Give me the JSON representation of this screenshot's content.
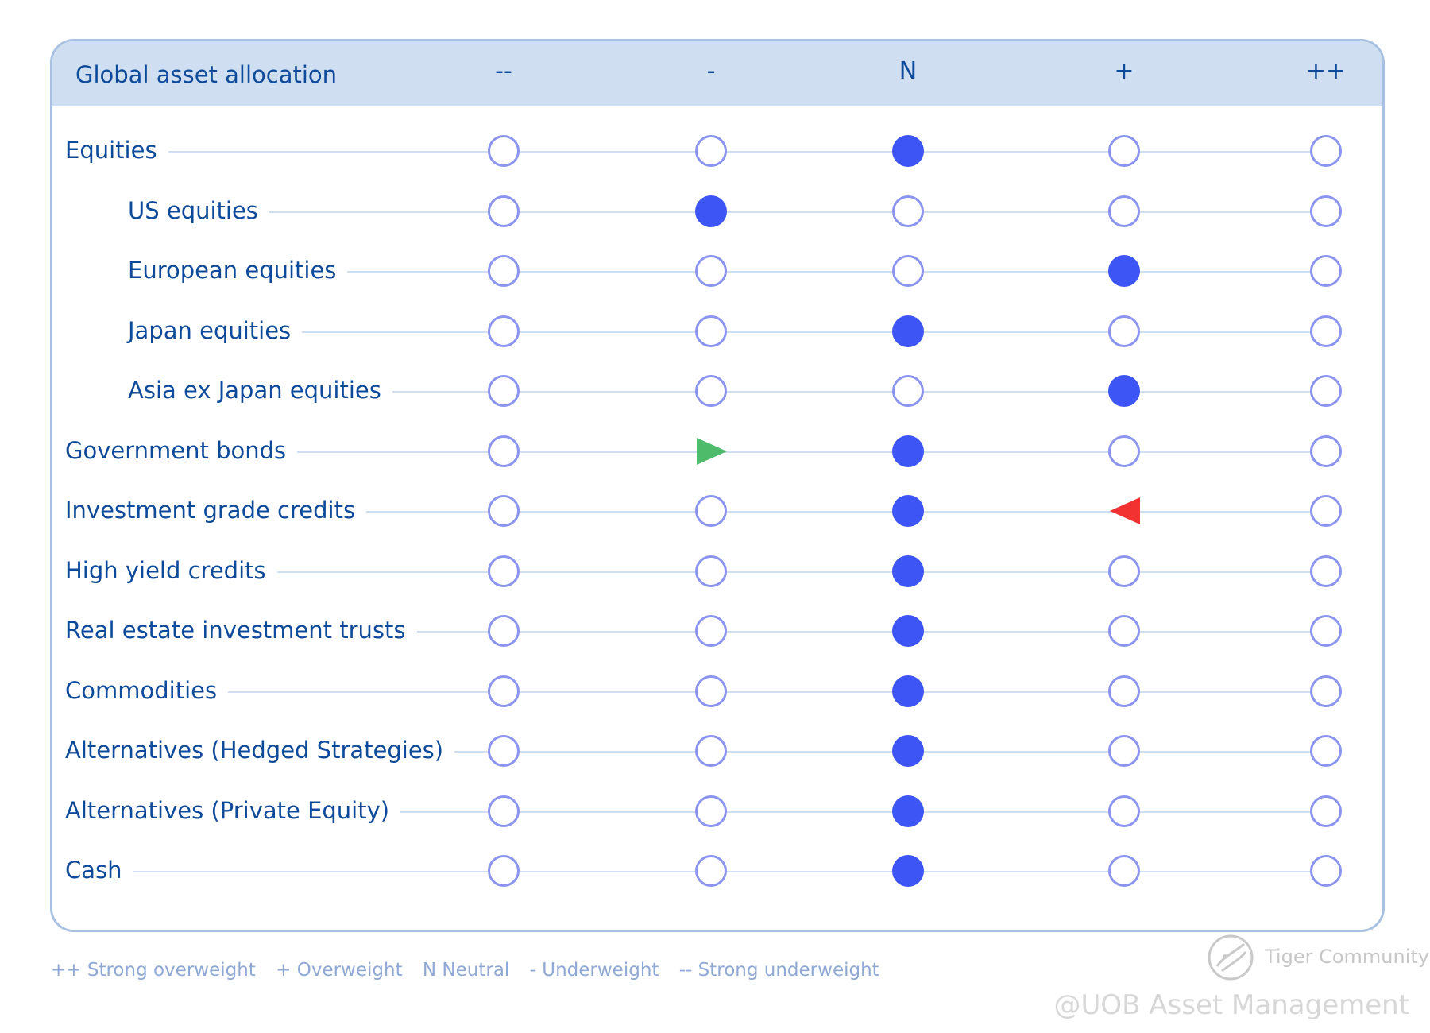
{
  "header": {
    "title": "Global asset allocation",
    "columns": [
      "--",
      "-",
      "N",
      "+",
      "++"
    ]
  },
  "rows": [
    {
      "label": "Equities",
      "level": 0,
      "selection": "N",
      "arrow": null
    },
    {
      "label": "US equities",
      "level": 1,
      "selection": "-",
      "arrow": null
    },
    {
      "label": "European equities",
      "level": 1,
      "selection": "+",
      "arrow": null
    },
    {
      "label": "Japan equities",
      "level": 1,
      "selection": "N",
      "arrow": null
    },
    {
      "label": "Asia ex Japan equities",
      "level": 1,
      "selection": "+",
      "arrow": null
    },
    {
      "label": "Government bonds",
      "level": 0,
      "selection": "N",
      "arrow": {
        "column": "-",
        "direction": "right",
        "color": "#4dbb6a"
      }
    },
    {
      "label": "Investment grade credits",
      "level": 0,
      "selection": "N",
      "arrow": {
        "column": "+",
        "direction": "left",
        "color": "#f23131"
      }
    },
    {
      "label": "High yield credits",
      "level": 0,
      "selection": "N",
      "arrow": null
    },
    {
      "label": "Real estate investment trusts",
      "level": 0,
      "selection": "N",
      "arrow": null
    },
    {
      "label": "Commodities",
      "level": 0,
      "selection": "N",
      "arrow": null
    },
    {
      "label": "Alternatives (Hedged Strategies)",
      "level": 0,
      "selection": "N",
      "arrow": null
    },
    {
      "label": "Alternatives (Private Equity)",
      "level": 0,
      "selection": "N",
      "arrow": null
    },
    {
      "label": "Cash",
      "level": 0,
      "selection": "N",
      "arrow": null
    }
  ],
  "legend": [
    "++ Strong overweight",
    "+ Overweight",
    "N Neutral",
    "- Underweight",
    "-- Strong underweight"
  ],
  "watermark": {
    "community": "Tiger Community",
    "credit": "@UOB Asset Management"
  },
  "colors": {
    "accent_text": "#0d4a9a",
    "header_bg": "#cfdff1",
    "filled_marker": "#3d55f5",
    "empty_marker_border": "#8b95f0",
    "legend_text": "#8fa8d4"
  }
}
